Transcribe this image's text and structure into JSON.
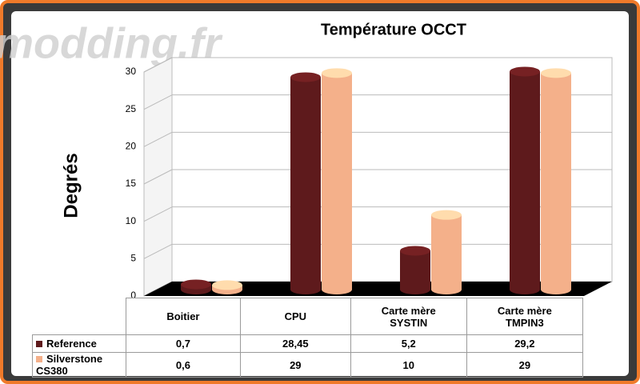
{
  "watermark": "modding.fr",
  "chart_data": {
    "type": "bar",
    "title": "Température OCCT",
    "y_label": "Degrés",
    "categories": [
      "Boitier",
      "CPU",
      "Carte mère SYSTIN",
      "Carte mère TMPIN3"
    ],
    "series": [
      {
        "name": "Reference",
        "color": "#5e1a1c",
        "values": [
          0.7,
          28.45,
          5.2,
          29.2
        ],
        "value_labels": [
          "0,7",
          "28,45",
          "5,2",
          "29,2"
        ]
      },
      {
        "name": "Silverstone CS380",
        "color": "#f4b08a",
        "values": [
          0.6,
          29,
          10,
          29
        ],
        "value_labels": [
          "0,6",
          "29",
          "10",
          "29"
        ]
      }
    ],
    "ylim": [
      0,
      30
    ],
    "yticks": [
      0,
      5,
      10,
      15,
      20,
      25,
      30
    ],
    "grid": true
  }
}
